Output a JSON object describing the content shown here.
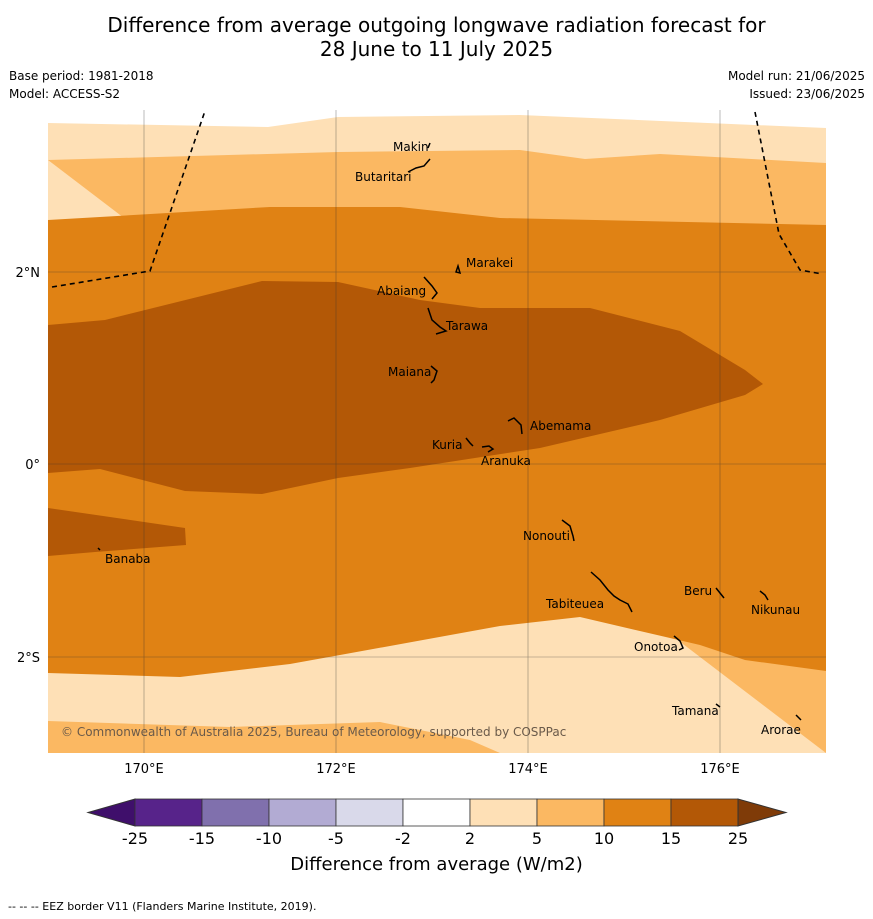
{
  "title": {
    "line1": "Difference from average outgoing longwave radiation forecast for",
    "line2": "28 June to 11 July 2025"
  },
  "meta": {
    "base_period": "Base period: 1981-2018",
    "model": "Model: ACCESS-S2",
    "model_run": "Model run: 21/06/2025",
    "issued": "Issued: 23/06/2025"
  },
  "map": {
    "copyright": "© Commonwealth of Australia 2025, Bureau of Meteorology, supported by COSPPac",
    "lat_labels": [
      "2°N",
      "0°",
      "2°S"
    ],
    "lon_labels": [
      "170°E",
      "172°E",
      "174°E",
      "176°E"
    ],
    "islands": [
      "Makin",
      "Butaritari",
      "Marakei",
      "Abaiang",
      "Tarawa",
      "Maiana",
      "Abemama",
      "Kuria",
      "Aranuka",
      "Banaba",
      "Nonouti",
      "Tabiteuea",
      "Beru",
      "Nikunau",
      "Onotoa",
      "Tamana",
      "Arorae"
    ]
  },
  "colorbar": {
    "label": "Difference from average (W/m2)",
    "ticks": [
      "-25",
      "-15",
      "-10",
      "-5",
      "-2",
      "2",
      "5",
      "10",
      "15",
      "25"
    ],
    "colors": [
      "#3f0f6b",
      "#57238a",
      "#8070ad",
      "#b2abd3",
      "#d9d9ea",
      "#ffffff",
      "#fee0b6",
      "#fbb862",
      "#e08214",
      "#b35806",
      "#7f3b08"
    ]
  },
  "footer": "--  --  -- EEZ border V11 (Flanders Marine Institute, 2019)."
}
